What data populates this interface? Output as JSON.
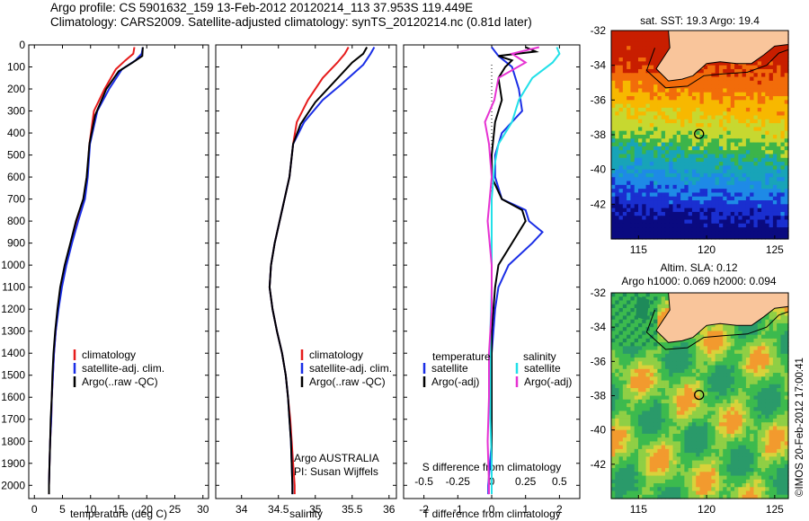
{
  "header": {
    "line1": "Argo profile: CS 5901632_159 13-Feb-2012 20120214_113 37.953S 119.449E",
    "line2": "Climatology: CARS2009. Satellite-adjusted climatology: synTS_20120214.nc (0.81d later)"
  },
  "side_label": "©IMOS 20-Feb-2012 17:00:41",
  "colors": {
    "climatology": "#e61c1c",
    "satellite": "#1a2ee6",
    "argo": "#000000",
    "sat_salinity": "#22e0e8",
    "argo_salinity": "#e632d2",
    "land": "#f9c59b"
  },
  "chart_data": [
    {
      "type": "line",
      "id": "temperature",
      "xlabel": "temperature (deg C)",
      "xlim": [
        -1,
        31
      ],
      "xticks": [
        0,
        5,
        10,
        15,
        20,
        25,
        30
      ],
      "ylim": [
        2060,
        0
      ],
      "yticks": [
        0,
        100,
        200,
        300,
        400,
        500,
        600,
        700,
        800,
        900,
        1000,
        1100,
        1200,
        1300,
        1400,
        1500,
        1600,
        1700,
        1800,
        1900,
        2000
      ],
      "legend": {
        "placement": "right-middle",
        "entries": [
          "climatology",
          "satellite-adj. clim.",
          "Argo(..raw -QC)"
        ]
      },
      "series": [
        {
          "name": "climatology",
          "color": "#e61c1c",
          "points": [
            [
              17.8,
              10
            ],
            [
              17.6,
              40
            ],
            [
              16.2,
              70
            ],
            [
              14.5,
              110
            ],
            [
              12.5,
              200
            ],
            [
              10.6,
              300
            ],
            [
              9.8,
              450
            ],
            [
              9.4,
              600
            ],
            [
              8.9,
              700
            ],
            [
              7.6,
              800
            ],
            [
              6.6,
              900
            ],
            [
              5.6,
              1000
            ],
            [
              4.8,
              1100
            ],
            [
              4.2,
              1200
            ],
            [
              3.8,
              1300
            ],
            [
              3.5,
              1400
            ],
            [
              3.3,
              1500
            ],
            [
              3.1,
              1600
            ],
            [
              3.0,
              1700
            ],
            [
              2.8,
              1800
            ],
            [
              2.7,
              1900
            ],
            [
              2.6,
              2000
            ],
            [
              2.6,
              2040
            ]
          ]
        },
        {
          "name": "satellite-adj. clim.",
          "color": "#1a2ee6",
          "points": [
            [
              19.3,
              10
            ],
            [
              19.1,
              40
            ],
            [
              18.0,
              70
            ],
            [
              15.6,
              110
            ],
            [
              13.3,
              200
            ],
            [
              11.2,
              300
            ],
            [
              9.9,
              450
            ],
            [
              9.5,
              600
            ],
            [
              9.0,
              700
            ],
            [
              7.8,
              800
            ],
            [
              6.7,
              900
            ],
            [
              5.7,
              1000
            ],
            [
              4.9,
              1100
            ],
            [
              4.3,
              1200
            ],
            [
              3.8,
              1300
            ],
            [
              3.5,
              1400
            ],
            [
              3.3,
              1500
            ],
            [
              3.1,
              1600
            ],
            [
              3.0,
              1700
            ],
            [
              2.8,
              1800
            ],
            [
              2.7,
              1900
            ],
            [
              2.6,
              2000
            ],
            [
              2.6,
              2040
            ]
          ]
        },
        {
          "name": "Argo(..raw -QC)",
          "color": "#000000",
          "points": [
            [
              19.3,
              10
            ],
            [
              19.2,
              50
            ],
            [
              17.5,
              80
            ],
            [
              15.0,
              120
            ],
            [
              12.8,
              200
            ],
            [
              10.8,
              320
            ],
            [
              9.8,
              450
            ],
            [
              9.3,
              600
            ],
            [
              8.7,
              700
            ],
            [
              7.4,
              800
            ],
            [
              6.4,
              900
            ],
            [
              5.4,
              1000
            ],
            [
              4.6,
              1100
            ],
            [
              4.1,
              1200
            ],
            [
              3.7,
              1300
            ],
            [
              3.4,
              1400
            ],
            [
              3.2,
              1500
            ],
            [
              3.1,
              1600
            ],
            [
              2.9,
              1700
            ],
            [
              2.8,
              1800
            ],
            [
              2.7,
              1900
            ],
            [
              2.6,
              2000
            ],
            [
              2.6,
              2040
            ]
          ]
        }
      ]
    },
    {
      "type": "line",
      "id": "salinity",
      "xlabel": "salinity",
      "xlim": [
        33.65,
        36.1
      ],
      "xticks": [
        34,
        34.5,
        35,
        35.5,
        36
      ],
      "xticklabels": [
        "34",
        "34.5",
        "35",
        "35.5",
        "36"
      ],
      "ylim": [
        2060,
        0
      ],
      "legend": {
        "placement": "right-middle",
        "entries": [
          "climatology",
          "satellite-adj. clim.",
          "Argo(..raw -QC)"
        ]
      },
      "annotations": [
        "Argo AUSTRALIA",
        "PI: Susan Wijffels"
      ],
      "series": [
        {
          "name": "climatology",
          "color": "#e61c1c",
          "points": [
            [
              35.45,
              10
            ],
            [
              35.4,
              40
            ],
            [
              35.3,
              80
            ],
            [
              35.1,
              150
            ],
            [
              34.9,
              250
            ],
            [
              34.75,
              350
            ],
            [
              34.7,
              450
            ],
            [
              34.65,
              600
            ],
            [
              34.55,
              750
            ],
            [
              34.45,
              900
            ],
            [
              34.4,
              1000
            ],
            [
              34.38,
              1100
            ],
            [
              34.42,
              1200
            ],
            [
              34.48,
              1300
            ],
            [
              34.55,
              1400
            ],
            [
              34.6,
              1500
            ],
            [
              34.63,
              1600
            ],
            [
              34.66,
              1700
            ],
            [
              34.68,
              1800
            ],
            [
              34.7,
              1900
            ],
            [
              34.72,
              2000
            ],
            [
              34.72,
              2040
            ]
          ]
        },
        {
          "name": "satellite-adj. clim.",
          "color": "#1a2ee6",
          "points": [
            [
              35.8,
              10
            ],
            [
              35.75,
              40
            ],
            [
              35.65,
              90
            ],
            [
              35.35,
              180
            ],
            [
              35.1,
              250
            ],
            [
              34.85,
              350
            ],
            [
              34.7,
              450
            ],
            [
              34.65,
              600
            ],
            [
              34.55,
              750
            ],
            [
              34.45,
              900
            ],
            [
              34.4,
              1000
            ],
            [
              34.38,
              1100
            ],
            [
              34.42,
              1200
            ],
            [
              34.48,
              1300
            ],
            [
              34.55,
              1400
            ],
            [
              34.6,
              1500
            ],
            [
              34.63,
              1600
            ],
            [
              34.65,
              1700
            ],
            [
              34.67,
              1800
            ],
            [
              34.68,
              1900
            ],
            [
              34.69,
              2000
            ],
            [
              34.69,
              2040
            ]
          ]
        },
        {
          "name": "Argo(..raw -QC)",
          "color": "#000000",
          "points": [
            [
              35.7,
              10
            ],
            [
              35.65,
              40
            ],
            [
              35.5,
              80
            ],
            [
              35.25,
              170
            ],
            [
              35.0,
              260
            ],
            [
              34.8,
              360
            ],
            [
              34.7,
              450
            ],
            [
              34.65,
              600
            ],
            [
              34.55,
              750
            ],
            [
              34.45,
              900
            ],
            [
              34.4,
              1000
            ],
            [
              34.38,
              1100
            ],
            [
              34.42,
              1200
            ],
            [
              34.48,
              1300
            ],
            [
              34.55,
              1400
            ],
            [
              34.6,
              1500
            ],
            [
              34.63,
              1600
            ],
            [
              34.65,
              1700
            ],
            [
              34.67,
              1800
            ],
            [
              34.68,
              1900
            ],
            [
              34.69,
              2000
            ],
            [
              34.69,
              2040
            ]
          ]
        }
      ]
    },
    {
      "type": "line",
      "id": "difference",
      "xlabel": "T difference from climatology",
      "x2label": "S difference from climatology",
      "xlim": [
        -2.6,
        2.6
      ],
      "xticks": [
        -2,
        -1,
        0,
        1,
        2
      ],
      "x2ticks": [
        -0.5,
        -0.25,
        0,
        0.25,
        0.5
      ],
      "x2ticklabels": [
        "-0.5",
        "-0.25",
        "0",
        "0.25",
        "0.5"
      ],
      "ylim": [
        2060,
        0
      ],
      "legend": {
        "placement": "right-middle",
        "groups": [
          "temperature",
          "salinity"
        ],
        "entries": [
          "satellite",
          "Argo(-adj)",
          "satellite",
          "Argo(-adj)"
        ]
      },
      "series": [
        {
          "name": "satellite",
          "group": "temperature",
          "color": "#1a2ee6",
          "points": [
            [
              0,
              10
            ],
            [
              0.2,
              50
            ],
            [
              0.6,
              100
            ],
            [
              0.8,
              200
            ],
            [
              0.9,
              300
            ],
            [
              0.3,
              400
            ],
            [
              0.1,
              500
            ],
            [
              0.1,
              600
            ],
            [
              0.3,
              700
            ],
            [
              1.0,
              750
            ],
            [
              1.1,
              800
            ],
            [
              1.5,
              850
            ],
            [
              1.2,
              900
            ],
            [
              0.5,
              1000
            ],
            [
              0.2,
              1100
            ],
            [
              0.1,
              1200
            ],
            [
              0,
              1400
            ],
            [
              0,
              1600
            ],
            [
              0,
              1800
            ],
            [
              -0.1,
              2000
            ],
            [
              -0.1,
              2040
            ]
          ]
        },
        {
          "name": "Argo(-adj)",
          "group": "temperature",
          "color": "#000000",
          "points": [
            [
              1.0,
              10
            ],
            [
              1.3,
              30
            ],
            [
              0.2,
              50
            ],
            [
              0.6,
              70
            ],
            [
              0.4,
              100
            ],
            [
              0.2,
              150
            ],
            [
              0.3,
              250
            ],
            [
              0.1,
              350
            ],
            [
              0,
              500
            ],
            [
              0,
              600
            ],
            [
              0.3,
              700
            ],
            [
              0.9,
              750
            ],
            [
              1.0,
              800
            ],
            [
              0.6,
              900
            ],
            [
              0.2,
              1000
            ],
            [
              0.1,
              1100
            ],
            [
              0,
              1300
            ],
            [
              0,
              1500
            ],
            [
              0,
              1700
            ],
            [
              0,
              1900
            ],
            [
              0,
              2040
            ]
          ]
        },
        {
          "name": "satellite",
          "group": "salinity",
          "color": "#22e0e8",
          "points": [
            [
              0.48,
              10
            ],
            [
              0.5,
              40
            ],
            [
              0.45,
              80
            ],
            [
              0.3,
              150
            ],
            [
              0.2,
              250
            ],
            [
              0.15,
              350
            ],
            [
              0.05,
              450
            ],
            [
              0.02,
              550
            ],
            [
              0,
              700
            ],
            [
              0,
              900
            ],
            [
              0,
              1100
            ],
            [
              -0.01,
              1300
            ],
            [
              -0.01,
              1500
            ],
            [
              -0.01,
              1700
            ],
            [
              0,
              1900
            ],
            [
              0,
              2040
            ]
          ]
        },
        {
          "name": "Argo(-adj)",
          "group": "salinity",
          "color": "#e632d2",
          "points": [
            [
              0.35,
              10
            ],
            [
              0.15,
              40
            ],
            [
              0.25,
              80
            ],
            [
              0.05,
              150
            ],
            [
              0.02,
              250
            ],
            [
              -0.05,
              350
            ],
            [
              -0.02,
              450
            ],
            [
              0,
              600
            ],
            [
              -0.03,
              800
            ],
            [
              0,
              1000
            ],
            [
              0,
              1200
            ],
            [
              -0.02,
              1400
            ],
            [
              -0.02,
              1600
            ],
            [
              -0.03,
              1800
            ],
            [
              -0.02,
              2000
            ],
            [
              -0.02,
              2040
            ]
          ]
        }
      ]
    },
    {
      "type": "heatmap",
      "id": "sst-map",
      "title": "sat. SST: 19.3 Argo: 19.4",
      "xlim": [
        113,
        126
      ],
      "ylim": [
        -44,
        -32
      ],
      "xticks": [
        115,
        120,
        125
      ],
      "yticks": [
        -32,
        -34,
        -36,
        -38,
        -40,
        -42
      ],
      "marker": {
        "lon": 119.449,
        "lat": -37.953
      }
    },
    {
      "type": "heatmap",
      "id": "sla-map",
      "title_lines": [
        "Altim. SLA: 0.12",
        "Argo h1000: 0.069 h2000: 0.094"
      ],
      "xlim": [
        113,
        126
      ],
      "ylim": [
        -44,
        -32
      ],
      "xticks": [
        115,
        120,
        125
      ],
      "yticks": [
        -32,
        -34,
        -36,
        -38,
        -40,
        -42
      ],
      "marker": {
        "lon": 119.449,
        "lat": -37.953
      }
    }
  ]
}
